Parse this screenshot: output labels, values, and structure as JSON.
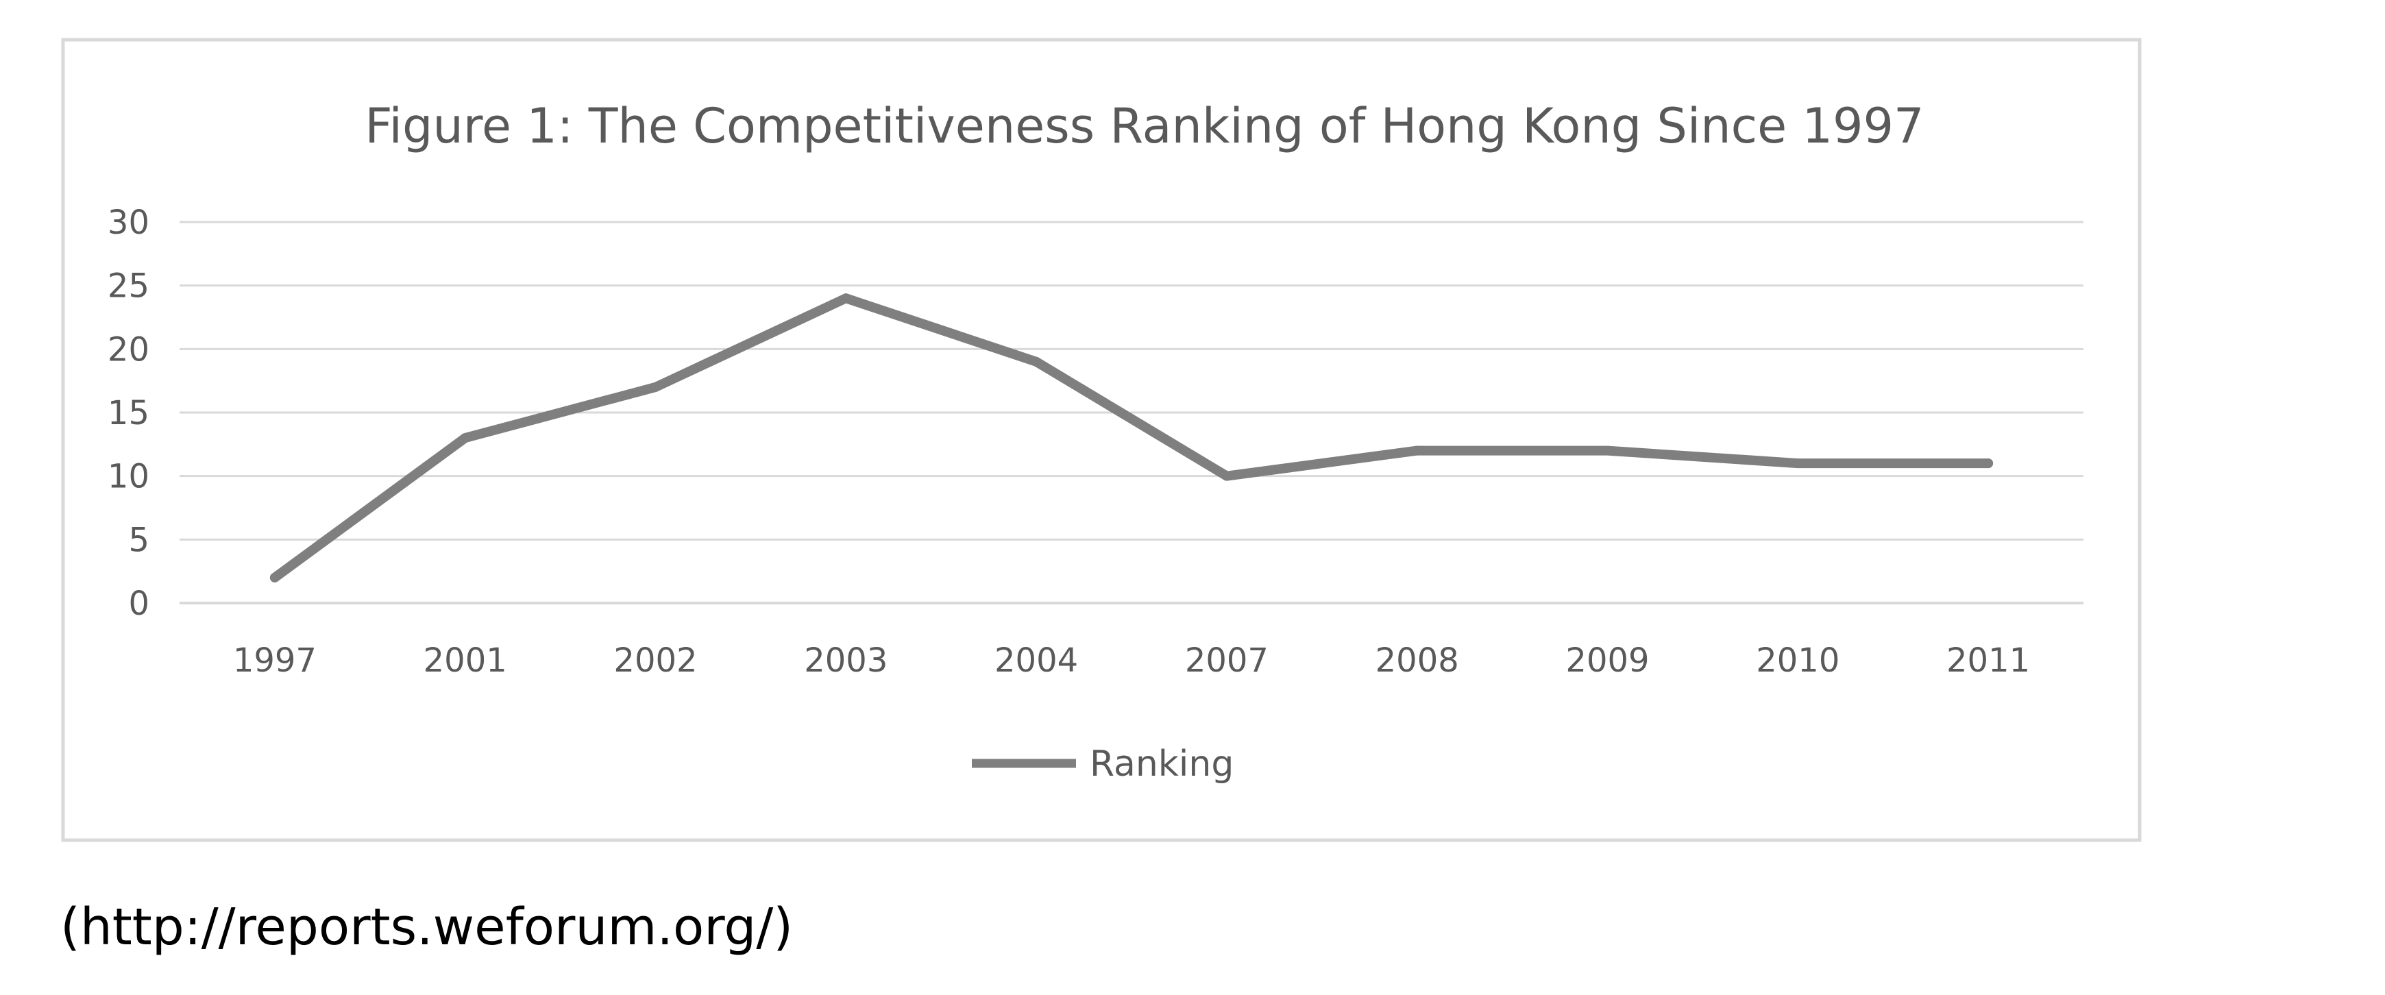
{
  "colors": {
    "series": "#7f7f7f",
    "grid": "#d9d9d9",
    "frame": "#d9d9d9",
    "text": "#595959"
  },
  "chart_data": {
    "type": "line",
    "title": "Figure 1: The Competitiveness Ranking of Hong Kong Since 1997",
    "categories": [
      "1997",
      "2001",
      "2002",
      "2003",
      "2004",
      "2007",
      "2008",
      "2009",
      "2010",
      "2011"
    ],
    "series": [
      {
        "name": "Ranking",
        "values": [
          2,
          13,
          17,
          24,
          19,
          10,
          12,
          12,
          11,
          11
        ]
      }
    ],
    "ylim": [
      0,
      30
    ],
    "yticks": [
      0,
      5,
      10,
      15,
      20,
      25,
      30
    ],
    "grid": true,
    "legend": "bottom"
  },
  "source": {
    "text": "(http://reports.weforum.org/)"
  }
}
